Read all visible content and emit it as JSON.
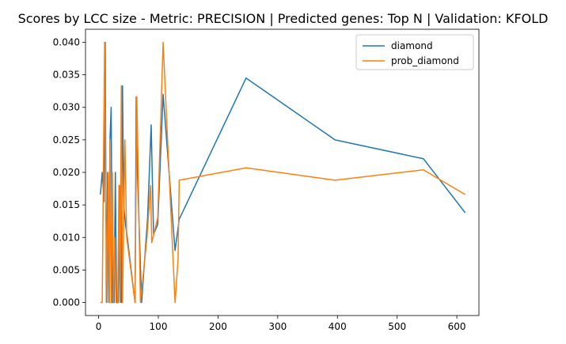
{
  "chart_data": {
    "type": "line",
    "title": "Scores by LCC size - Metric: PRECISION | Predicted genes: Top N | Validation: KFOLD",
    "xlabel": "",
    "ylabel": "",
    "xlim": [
      -22,
      637
    ],
    "ylim": [
      -0.002,
      0.042
    ],
    "xticks": [
      0,
      100,
      200,
      300,
      400,
      500,
      600
    ],
    "yticks": [
      0.0,
      0.005,
      0.01,
      0.015,
      0.02,
      0.025,
      0.03,
      0.035,
      0.04
    ],
    "ytick_labels": [
      "0.000",
      "0.005",
      "0.010",
      "0.015",
      "0.020",
      "0.025",
      "0.030",
      "0.035",
      "0.040"
    ],
    "grid": false,
    "legend_position": "top-right",
    "series": [
      {
        "name": "diamond",
        "color": "#1f77b4",
        "points": [
          [
            3,
            0.0166
          ],
          [
            6,
            0.02
          ],
          [
            9,
            0.0155
          ],
          [
            11,
            0.04
          ],
          [
            13,
            0.0
          ],
          [
            15,
            0.02
          ],
          [
            17,
            0.0
          ],
          [
            19,
            0.025
          ],
          [
            21,
            0.03
          ],
          [
            23,
            0.0
          ],
          [
            26,
            0.0
          ],
          [
            28,
            0.02
          ],
          [
            30,
            0.0
          ],
          [
            33,
            0.0
          ],
          [
            35,
            0.018
          ],
          [
            36,
            0.0
          ],
          [
            37,
            0.014
          ],
          [
            38,
            0.0
          ],
          [
            40,
            0.0333
          ],
          [
            42,
            0.015
          ],
          [
            45,
            0.012
          ],
          [
            48,
            0.01
          ],
          [
            61,
            0.0
          ],
          [
            63,
            0.0316
          ],
          [
            65,
            0.02
          ],
          [
            72,
            0.0
          ],
          [
            82,
            0.013
          ],
          [
            88,
            0.0273
          ],
          [
            92,
            0.0105
          ],
          [
            99,
            0.012
          ],
          [
            108,
            0.032
          ],
          [
            128,
            0.008
          ],
          [
            135,
            0.0128
          ],
          [
            247,
            0.0345
          ],
          [
            396,
            0.025
          ],
          [
            544,
            0.0221
          ],
          [
            614,
            0.0138
          ]
        ]
      },
      {
        "name": "prob_diamond",
        "color": "#ff7f0e",
        "points": [
          [
            3,
            0.0
          ],
          [
            6,
            0.0
          ],
          [
            10,
            0.04
          ],
          [
            12,
            0.016
          ],
          [
            14,
            0.0
          ],
          [
            16,
            0.02
          ],
          [
            18,
            0.0
          ],
          [
            19,
            0.025
          ],
          [
            21,
            0.0
          ],
          [
            23,
            0.02
          ],
          [
            25,
            0.0
          ],
          [
            27,
            0.01
          ],
          [
            29,
            0.0
          ],
          [
            32,
            0.0
          ],
          [
            34,
            0.018
          ],
          [
            36,
            0.0
          ],
          [
            38,
            0.0333
          ],
          [
            40,
            0.0
          ],
          [
            44,
            0.025
          ],
          [
            47,
            0.01
          ],
          [
            61,
            0.0
          ],
          [
            64,
            0.0316
          ],
          [
            70,
            0.0
          ],
          [
            81,
            0.01
          ],
          [
            87,
            0.018
          ],
          [
            89,
            0.0092
          ],
          [
            99,
            0.013
          ],
          [
            108,
            0.04
          ],
          [
            128,
            0.0
          ],
          [
            133,
            0.0065
          ],
          [
            135,
            0.0188
          ],
          [
            247,
            0.0207
          ],
          [
            396,
            0.0188
          ],
          [
            544,
            0.0204
          ],
          [
            614,
            0.0166
          ]
        ]
      }
    ]
  }
}
